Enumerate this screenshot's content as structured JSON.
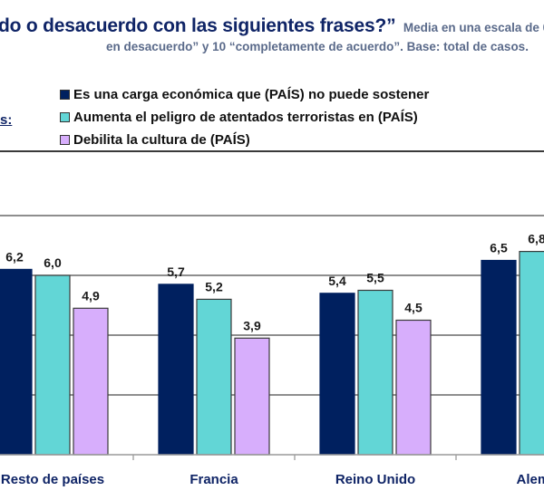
{
  "header": {
    "title_main": "do o desacuerdo con las siguientes frases?”",
    "title_sub_1": "Media en una escala de 0",
    "title_sub_2": "en desacuerdo” y 10 “completamente de acuerdo”. Base: total de casos.",
    "left_label": "s:"
  },
  "colors": {
    "series_1": "#00205f",
    "series_2": "#62d6d6",
    "series_3": "#d7aefc",
    "title": "#0f2466",
    "subtitle": "#5a6a8a"
  },
  "chart_data": {
    "type": "bar",
    "title": "do o desacuerdo con las siguientes frases?”",
    "subtitle": "Media en una escala de 0 ... en desacuerdo” y 10 “completamente de acuerdo”. Base: total de casos.",
    "categories": [
      "Resto de países",
      "Francia",
      "Reino Unido",
      "Alema"
    ],
    "series": [
      {
        "name": "Es una carga económica que (PAÍS) no puede sostener",
        "values": [
          6.2,
          5.7,
          5.4,
          6.5
        ],
        "labels": [
          "6,2",
          "5,7",
          "5,4",
          "6,5"
        ]
      },
      {
        "name": "Aumenta el peligro de atentados terroristas en (PAÍS)",
        "values": [
          6.0,
          5.2,
          5.5,
          6.8
        ],
        "labels": [
          "6,0",
          "5,2",
          "5,5",
          "6,8"
        ]
      },
      {
        "name": "Debilita la cultura de (PAÍS)",
        "values": [
          4.9,
          3.9,
          4.5,
          null
        ],
        "labels": [
          "4,9",
          "3,9",
          "4,5",
          ""
        ]
      }
    ],
    "xlabel": "",
    "ylabel": "",
    "ylim": [
      0,
      8
    ],
    "gridlines": [
      2,
      4,
      6,
      8
    ],
    "grid": true,
    "legend_position": "top"
  }
}
